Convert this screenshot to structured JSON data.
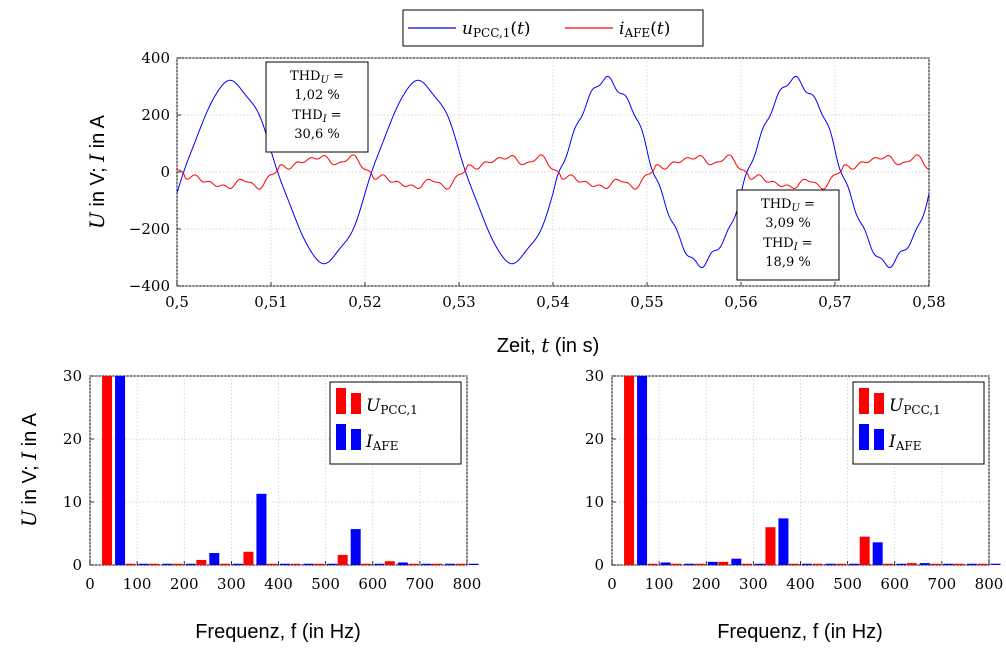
{
  "chart_data": [
    {
      "type": "line",
      "xlabel": "Zeit, t (in s)",
      "ylabel": "U in V; I in A",
      "xlim": [
        0.5,
        0.58
      ],
      "ylim": [
        -400,
        400
      ],
      "xticks": [
        "0,5",
        "0,51",
        "0,52",
        "0,53",
        "0,54",
        "0,55",
        "0,56",
        "0,57",
        "0,58"
      ],
      "yticks": [
        "−400",
        "−200",
        "0",
        "200",
        "400"
      ],
      "grid": true,
      "legend": {
        "placement": "top-center"
      },
      "series": [
        {
          "name": "u_PCC,1(t)",
          "color": "#0000ff",
          "amplitude": 320,
          "freq_hz": 50,
          "note_wave": "sine"
        },
        {
          "name": "i_AFE(t)",
          "color": "#ff0000",
          "amplitude": 50,
          "freq_hz": 50
        }
      ],
      "annotations": [
        {
          "lines": [
            "THD_U =",
            "1,02 %",
            "THD_I =",
            "30,6 %"
          ]
        },
        {
          "lines": [
            "THD_U =",
            "3,09 %",
            "THD_I =",
            "18,9 %"
          ]
        }
      ]
    },
    {
      "type": "bar",
      "xlabel": "Frequenz, f (in Hz)",
      "ylabel": "U in V; I in A",
      "xlim": [
        0,
        800
      ],
      "ylim": [
        0,
        30
      ],
      "xticks": [
        "0",
        "100",
        "200",
        "300",
        "400",
        "500",
        "600",
        "700",
        "800"
      ],
      "yticks": [
        "0",
        "10",
        "20",
        "30"
      ],
      "grid": true,
      "legend": {
        "placement": "top-right"
      },
      "x": [
        50,
        100,
        150,
        200,
        250,
        300,
        350,
        400,
        450,
        500,
        550,
        600,
        650,
        700,
        750,
        800
      ],
      "series": [
        {
          "name": "U_PCC,1",
          "color": "#ff0000",
          "values": [
            30,
            0.2,
            0.2,
            0.2,
            0.8,
            0.2,
            2.1,
            0.2,
            0.2,
            0.2,
            1.6,
            0.2,
            0.6,
            0.2,
            0.2,
            0.2
          ]
        },
        {
          "name": "I_AFE",
          "color": "#0000ff",
          "values": [
            30,
            0.2,
            0.2,
            0.2,
            1.9,
            0.2,
            11.3,
            0.2,
            0.2,
            0.2,
            5.7,
            0.2,
            0.4,
            0.2,
            0.2,
            0.2
          ]
        }
      ]
    },
    {
      "type": "bar",
      "xlabel": "Frequenz, f (in Hz)",
      "ylabel": "",
      "xlim": [
        0,
        800
      ],
      "ylim": [
        0,
        30
      ],
      "xticks": [
        "0",
        "100",
        "200",
        "300",
        "400",
        "500",
        "600",
        "700",
        "800"
      ],
      "yticks": [
        "0",
        "10",
        "20",
        "30"
      ],
      "grid": true,
      "legend": {
        "placement": "top-right"
      },
      "x": [
        50,
        100,
        150,
        200,
        250,
        300,
        350,
        400,
        450,
        500,
        550,
        600,
        650,
        700,
        750,
        800
      ],
      "series": [
        {
          "name": "U_PCC,1",
          "color": "#ff0000",
          "values": [
            30,
            0.2,
            0.2,
            0.2,
            0.5,
            0.2,
            6.0,
            0.2,
            0.2,
            0.2,
            4.5,
            0.2,
            0.3,
            0.2,
            0.2,
            0.2
          ]
        },
        {
          "name": "I_AFE",
          "color": "#0000ff",
          "values": [
            30,
            0.4,
            0.2,
            0.5,
            1.0,
            0.2,
            7.4,
            0.2,
            0.2,
            0.2,
            3.6,
            0.2,
            0.3,
            0.2,
            0.2,
            0.2
          ]
        }
      ]
    }
  ]
}
